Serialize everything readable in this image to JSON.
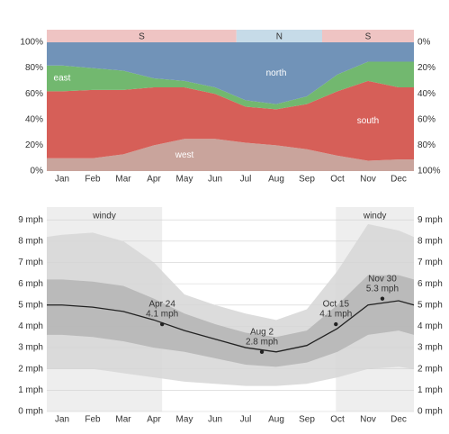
{
  "chart_data": [
    {
      "type": "area",
      "xlim": [
        0,
        12
      ],
      "xticks": [
        {
          "value": 0.5,
          "label": "Jan"
        },
        {
          "value": 1.5,
          "label": "Feb"
        },
        {
          "value": 2.5,
          "label": "Mar"
        },
        {
          "value": 3.5,
          "label": "Apr"
        },
        {
          "value": 4.5,
          "label": "May"
        },
        {
          "value": 5.5,
          "label": "Jun"
        },
        {
          "value": 6.5,
          "label": "Jul"
        },
        {
          "value": 7.5,
          "label": "Aug"
        },
        {
          "value": 8.5,
          "label": "Sep"
        },
        {
          "value": 9.5,
          "label": "Oct"
        },
        {
          "value": 10.5,
          "label": "Nov"
        },
        {
          "value": 11.5,
          "label": "Dec"
        }
      ],
      "x": [
        0.5,
        1.5,
        2.5,
        3.5,
        4.5,
        5.5,
        6.5,
        7.5,
        8.5,
        9.5,
        10.5,
        11.5
      ],
      "ylim": [
        0,
        100
      ],
      "yticks": [
        {
          "value": 0,
          "label": "0%"
        },
        {
          "value": 20,
          "label": "20%"
        },
        {
          "value": 40,
          "label": "40%"
        },
        {
          "value": 60,
          "label": "60%"
        },
        {
          "value": 80,
          "label": "80%"
        },
        {
          "value": 100,
          "label": "100%"
        }
      ],
      "y2lim": [
        100,
        0
      ],
      "y2ticks": [
        {
          "value": 0,
          "label": "0%"
        },
        {
          "value": 20,
          "label": "20%"
        },
        {
          "value": 40,
          "label": "40%"
        },
        {
          "value": 60,
          "label": "60%"
        },
        {
          "value": 80,
          "label": "80%"
        },
        {
          "value": 100,
          "label": "100%"
        }
      ],
      "stacked": true,
      "series": [
        {
          "name": "west",
          "color": "#c9a49c",
          "values": [
            10,
            10,
            13,
            20,
            25,
            25,
            22,
            20,
            17,
            12,
            8,
            9
          ]
        },
        {
          "name": "south",
          "color": "#d65f58",
          "values": [
            52,
            53,
            50,
            45,
            40,
            35,
            28,
            28,
            35,
            50,
            62,
            56
          ]
        },
        {
          "name": "east",
          "color": "#72b86f",
          "values": [
            20,
            17,
            15,
            7,
            5,
            5,
            5,
            4,
            6,
            13,
            15,
            20
          ]
        },
        {
          "name": "north",
          "color": "#7193b8",
          "values": [
            18,
            20,
            22,
            28,
            30,
            35,
            45,
            48,
            42,
            25,
            15,
            15
          ]
        }
      ],
      "regions": {
        "labels": [
          "S",
          "N",
          "S"
        ],
        "from": [
          0,
          6.2,
          9
        ],
        "to": [
          6.2,
          9,
          12
        ],
        "colors": [
          "#efc4c3",
          "#c6dbe8",
          "#efc4c3"
        ]
      }
    },
    {
      "type": "line",
      "xlim": [
        0,
        12
      ],
      "xticks": [
        {
          "value": 0.5,
          "label": "Jan"
        },
        {
          "value": 1.5,
          "label": "Feb"
        },
        {
          "value": 2.5,
          "label": "Mar"
        },
        {
          "value": 3.5,
          "label": "Apr"
        },
        {
          "value": 4.5,
          "label": "May"
        },
        {
          "value": 5.5,
          "label": "Jun"
        },
        {
          "value": 6.5,
          "label": "Jul"
        },
        {
          "value": 7.5,
          "label": "Aug"
        },
        {
          "value": 8.5,
          "label": "Sep"
        },
        {
          "value": 9.5,
          "label": "Oct"
        },
        {
          "value": 10.5,
          "label": "Nov"
        },
        {
          "value": 11.5,
          "label": "Dec"
        }
      ],
      "ylim": [
        0,
        9.6
      ],
      "yticks": [
        {
          "value": 0,
          "label": "0 mph"
        },
        {
          "value": 1,
          "label": "1 mph"
        },
        {
          "value": 2,
          "label": "2 mph"
        },
        {
          "value": 3,
          "label": "3 mph"
        },
        {
          "value": 4,
          "label": "4 mph"
        },
        {
          "value": 5,
          "label": "5 mph"
        },
        {
          "value": 6,
          "label": "6 mph"
        },
        {
          "value": 7,
          "label": "7 mph"
        },
        {
          "value": 8,
          "label": "8 mph"
        },
        {
          "value": 9,
          "label": "9 mph"
        }
      ],
      "y2lim": [
        0,
        9.6
      ],
      "y2ticks": [
        {
          "value": 0,
          "label": "0 mph"
        },
        {
          "value": 1,
          "label": "1 mph"
        },
        {
          "value": 2,
          "label": "2 mph"
        },
        {
          "value": 3,
          "label": "3 mph"
        },
        {
          "value": 4,
          "label": "4 mph"
        },
        {
          "value": 5,
          "label": "5 mph"
        },
        {
          "value": 6,
          "label": "6 mph"
        },
        {
          "value": 7,
          "label": "7 mph"
        },
        {
          "value": 8,
          "label": "8 mph"
        },
        {
          "value": 9,
          "label": "9 mph"
        }
      ],
      "grid": true,
      "x": [
        0,
        0.5,
        1.5,
        2.5,
        3.5,
        4.5,
        5.5,
        6.5,
        7.5,
        8.5,
        9.5,
        10.5,
        11.5,
        12
      ],
      "values": [
        5.0,
        5.0,
        4.9,
        4.7,
        4.3,
        3.8,
        3.4,
        3.0,
        2.8,
        3.1,
        3.9,
        5.0,
        5.2,
        5.0
      ],
      "color": "#222222",
      "bands": [
        {
          "color": "#d6d6d6",
          "upper": [
            8.2,
            8.3,
            8.4,
            8.0,
            7.0,
            5.5,
            5.0,
            4.6,
            4.3,
            4.8,
            6.6,
            8.8,
            8.5,
            8.2
          ],
          "lower": [
            2.0,
            2.0,
            2.0,
            1.8,
            1.6,
            1.4,
            1.3,
            1.2,
            1.2,
            1.3,
            1.6,
            2.0,
            2.1,
            2.0
          ]
        },
        {
          "color": "#b4b4b4",
          "upper": [
            6.2,
            6.2,
            6.1,
            5.9,
            5.3,
            4.6,
            4.1,
            3.7,
            3.5,
            3.8,
            5.0,
            6.4,
            6.4,
            6.2
          ],
          "lower": [
            3.6,
            3.6,
            3.5,
            3.3,
            3.0,
            2.8,
            2.5,
            2.2,
            2.1,
            2.3,
            2.8,
            3.6,
            3.8,
            3.6
          ]
        }
      ],
      "highlights": {
        "labels": [
          "windy",
          "windy"
        ],
        "from": [
          0,
          9.45
        ],
        "to": [
          3.77,
          12
        ],
        "color": "#eeeeee"
      },
      "annotations": {
        "x": [
          3.77,
          7.03,
          9.45,
          10.97
        ],
        "values": [
          4.1,
          2.8,
          4.1,
          5.3
        ],
        "labels": [
          "Apr 24",
          "Aug 2",
          "Oct 15",
          "Nov 30"
        ],
        "value_labels": [
          "4.1 mph",
          "2.8 mph",
          "4.1 mph",
          "5.3 mph"
        ]
      }
    }
  ]
}
